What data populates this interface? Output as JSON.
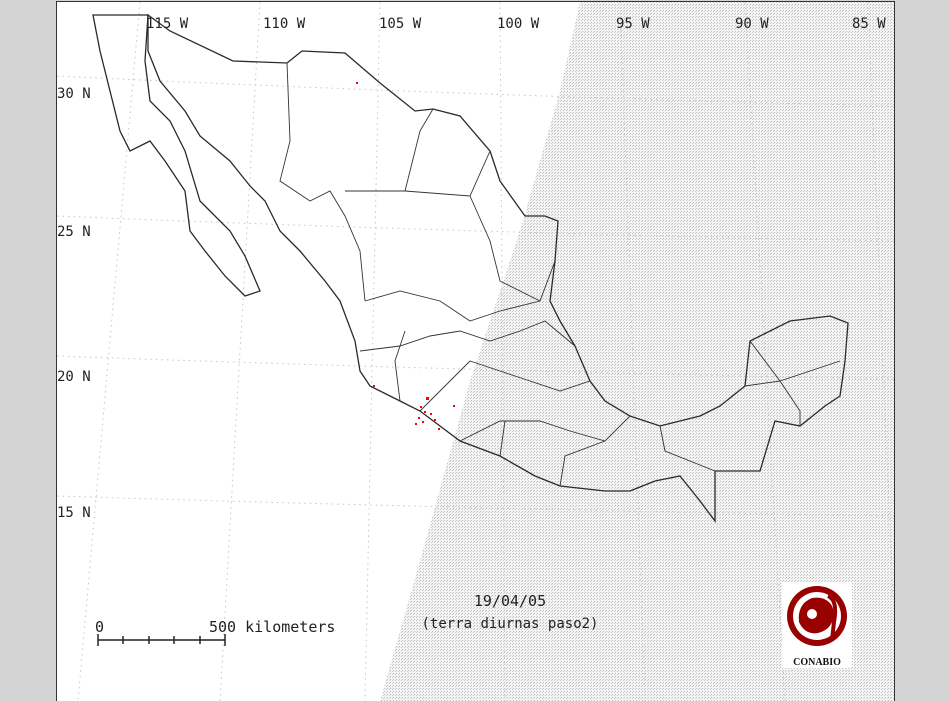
{
  "map": {
    "longitude_labels": [
      "115 W",
      "110 W",
      "105 W",
      "100 W",
      "95 W",
      "90 W",
      "85 W"
    ],
    "latitude_labels": [
      "30 N",
      "25 N",
      "20 N",
      "15 N"
    ],
    "date": "19/04/05",
    "caption": "(terra diurnas paso2)",
    "scale": {
      "start_label": "0",
      "end_label": "500 kilometers"
    },
    "logo_text": "CONABIO",
    "colors": {
      "hotspot": "#ff0000",
      "outline": "#333333",
      "logo": "#990000",
      "background": "#d4d4d4"
    }
  }
}
